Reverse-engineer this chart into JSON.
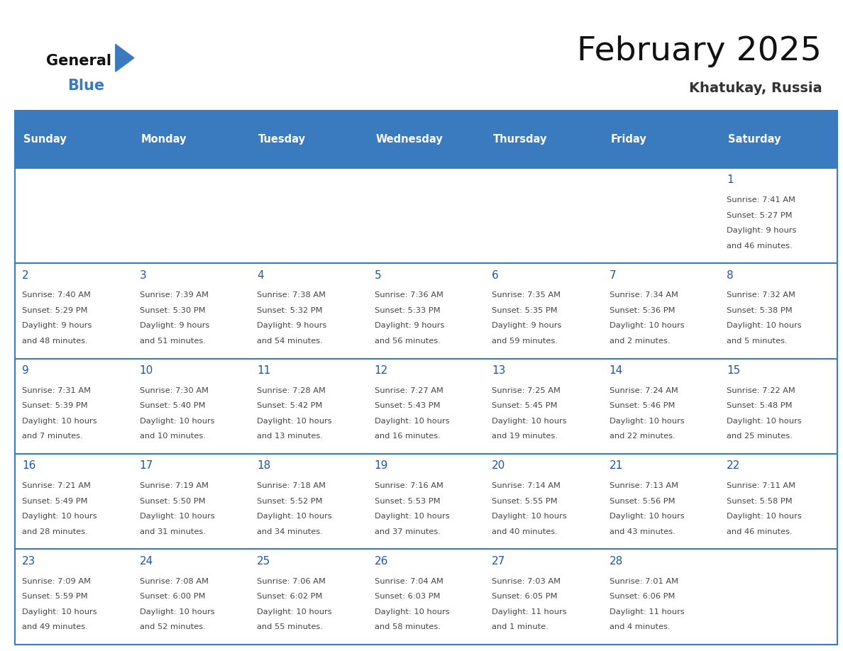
{
  "title": "February 2025",
  "subtitle": "Khatukay, Russia",
  "header_color": "#3a7abf",
  "header_text_color": "#ffffff",
  "day_names": [
    "Sunday",
    "Monday",
    "Tuesday",
    "Wednesday",
    "Thursday",
    "Friday",
    "Saturday"
  ],
  "background_color": "#ffffff",
  "border_color": "#3a7abf",
  "day_number_color": "#2255aa",
  "text_color": "#444444",
  "title_color": "#111111",
  "subtitle_color": "#333333",
  "calendar": [
    [
      null,
      null,
      null,
      null,
      null,
      null,
      {
        "day": "1",
        "sunrise": "7:41 AM",
        "sunset": "5:27 PM",
        "daylight_line1": "9 hours",
        "daylight_line2": "and 46 minutes."
      }
    ],
    [
      {
        "day": "2",
        "sunrise": "7:40 AM",
        "sunset": "5:29 PM",
        "daylight_line1": "9 hours",
        "daylight_line2": "and 48 minutes."
      },
      {
        "day": "3",
        "sunrise": "7:39 AM",
        "sunset": "5:30 PM",
        "daylight_line1": "9 hours",
        "daylight_line2": "and 51 minutes."
      },
      {
        "day": "4",
        "sunrise": "7:38 AM",
        "sunset": "5:32 PM",
        "daylight_line1": "9 hours",
        "daylight_line2": "and 54 minutes."
      },
      {
        "day": "5",
        "sunrise": "7:36 AM",
        "sunset": "5:33 PM",
        "daylight_line1": "9 hours",
        "daylight_line2": "and 56 minutes."
      },
      {
        "day": "6",
        "sunrise": "7:35 AM",
        "sunset": "5:35 PM",
        "daylight_line1": "9 hours",
        "daylight_line2": "and 59 minutes."
      },
      {
        "day": "7",
        "sunrise": "7:34 AM",
        "sunset": "5:36 PM",
        "daylight_line1": "10 hours",
        "daylight_line2": "and 2 minutes."
      },
      {
        "day": "8",
        "sunrise": "7:32 AM",
        "sunset": "5:38 PM",
        "daylight_line1": "10 hours",
        "daylight_line2": "and 5 minutes."
      }
    ],
    [
      {
        "day": "9",
        "sunrise": "7:31 AM",
        "sunset": "5:39 PM",
        "daylight_line1": "10 hours",
        "daylight_line2": "and 7 minutes."
      },
      {
        "day": "10",
        "sunrise": "7:30 AM",
        "sunset": "5:40 PM",
        "daylight_line1": "10 hours",
        "daylight_line2": "and 10 minutes."
      },
      {
        "day": "11",
        "sunrise": "7:28 AM",
        "sunset": "5:42 PM",
        "daylight_line1": "10 hours",
        "daylight_line2": "and 13 minutes."
      },
      {
        "day": "12",
        "sunrise": "7:27 AM",
        "sunset": "5:43 PM",
        "daylight_line1": "10 hours",
        "daylight_line2": "and 16 minutes."
      },
      {
        "day": "13",
        "sunrise": "7:25 AM",
        "sunset": "5:45 PM",
        "daylight_line1": "10 hours",
        "daylight_line2": "and 19 minutes."
      },
      {
        "day": "14",
        "sunrise": "7:24 AM",
        "sunset": "5:46 PM",
        "daylight_line1": "10 hours",
        "daylight_line2": "and 22 minutes."
      },
      {
        "day": "15",
        "sunrise": "7:22 AM",
        "sunset": "5:48 PM",
        "daylight_line1": "10 hours",
        "daylight_line2": "and 25 minutes."
      }
    ],
    [
      {
        "day": "16",
        "sunrise": "7:21 AM",
        "sunset": "5:49 PM",
        "daylight_line1": "10 hours",
        "daylight_line2": "and 28 minutes."
      },
      {
        "day": "17",
        "sunrise": "7:19 AM",
        "sunset": "5:50 PM",
        "daylight_line1": "10 hours",
        "daylight_line2": "and 31 minutes."
      },
      {
        "day": "18",
        "sunrise": "7:18 AM",
        "sunset": "5:52 PM",
        "daylight_line1": "10 hours",
        "daylight_line2": "and 34 minutes."
      },
      {
        "day": "19",
        "sunrise": "7:16 AM",
        "sunset": "5:53 PM",
        "daylight_line1": "10 hours",
        "daylight_line2": "and 37 minutes."
      },
      {
        "day": "20",
        "sunrise": "7:14 AM",
        "sunset": "5:55 PM",
        "daylight_line1": "10 hours",
        "daylight_line2": "and 40 minutes."
      },
      {
        "day": "21",
        "sunrise": "7:13 AM",
        "sunset": "5:56 PM",
        "daylight_line1": "10 hours",
        "daylight_line2": "and 43 minutes."
      },
      {
        "day": "22",
        "sunrise": "7:11 AM",
        "sunset": "5:58 PM",
        "daylight_line1": "10 hours",
        "daylight_line2": "and 46 minutes."
      }
    ],
    [
      {
        "day": "23",
        "sunrise": "7:09 AM",
        "sunset": "5:59 PM",
        "daylight_line1": "10 hours",
        "daylight_line2": "and 49 minutes."
      },
      {
        "day": "24",
        "sunrise": "7:08 AM",
        "sunset": "6:00 PM",
        "daylight_line1": "10 hours",
        "daylight_line2": "and 52 minutes."
      },
      {
        "day": "25",
        "sunrise": "7:06 AM",
        "sunset": "6:02 PM",
        "daylight_line1": "10 hours",
        "daylight_line2": "and 55 minutes."
      },
      {
        "day": "26",
        "sunrise": "7:04 AM",
        "sunset": "6:03 PM",
        "daylight_line1": "10 hours",
        "daylight_line2": "and 58 minutes."
      },
      {
        "day": "27",
        "sunrise": "7:03 AM",
        "sunset": "6:05 PM",
        "daylight_line1": "11 hours",
        "daylight_line2": "and 1 minute."
      },
      {
        "day": "28",
        "sunrise": "7:01 AM",
        "sunset": "6:06 PM",
        "daylight_line1": "11 hours",
        "daylight_line2": "and 4 minutes."
      },
      null
    ]
  ]
}
